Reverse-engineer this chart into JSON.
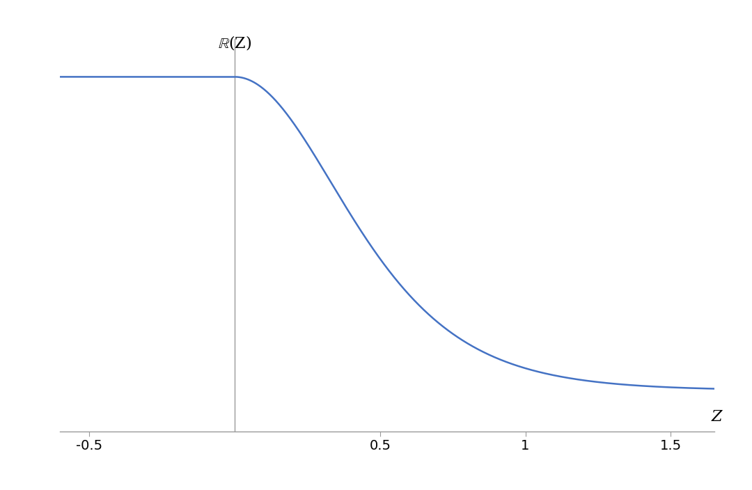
{
  "xlim": [
    -0.6,
    1.65
  ],
  "ylim": [
    -0.13,
    1.12
  ],
  "xticks": [
    -0.5,
    0.5,
    1.0,
    1.5
  ],
  "xtick_labels": [
    "-0.5",
    "0.5",
    "1",
    "1.5"
  ],
  "xlabel": "Z",
  "ylabel": "ℝ(Z)",
  "line_color": "#4472C4",
  "axis_color": "#999999",
  "background_color": "#ffffff",
  "line_width": 1.8,
  "vline_x": 0.0,
  "figsize": [
    10.8,
    7.04
  ],
  "dpi": 100,
  "tick_label_fontsize": 14,
  "axis_label_fontsize": 16,
  "sech_alpha": 2.0
}
